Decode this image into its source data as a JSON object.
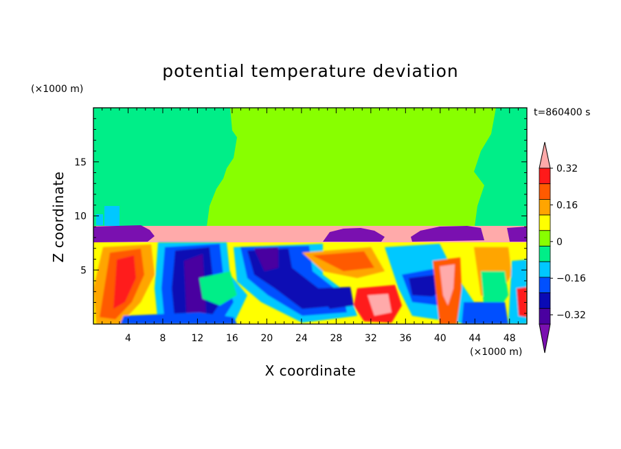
{
  "chart_data": {
    "type": "heatmap",
    "title": "potential temperature deviation",
    "xlabel": "X coordinate",
    "ylabel": "Z coordinate",
    "x_unit": "(×1000 m)",
    "y_unit": "(×1000 m)",
    "time_label": "t=860400 s",
    "xlim": [
      0,
      50
    ],
    "ylim": [
      0,
      20
    ],
    "x_ticks": [
      4,
      8,
      12,
      16,
      20,
      24,
      28,
      32,
      36,
      40,
      44,
      48
    ],
    "y_ticks": [
      5,
      10,
      15
    ],
    "colorbar": {
      "levels": [
        -0.4,
        -0.36,
        -0.32,
        -0.24,
        -0.16,
        -0.08,
        0,
        0.08,
        0.16,
        0.24,
        0.32,
        0.4
      ],
      "tick_labels": [
        "0.32",
        "0.16",
        "0",
        "−0.16",
        "−0.32"
      ],
      "tick_values": [
        0.32,
        0.16,
        0,
        -0.16,
        -0.32
      ],
      "colors": [
        "#7a10b0",
        "#4a00a0",
        "#0a0ab4",
        "#0050ff",
        "#00c8ff",
        "#00ee88",
        "#88ff00",
        "#ffff00",
        "#ffa500",
        "#ff5a00",
        "#ff1a1a",
        "#ffaaaa"
      ],
      "extend": "both"
    },
    "regions": [
      {
        "desc": "upper layer",
        "z_range": [
          9.2,
          20
        ],
        "dominant_value": 0.04,
        "color": "#88ff00"
      },
      {
        "desc": "upper layer edges",
        "z_range": [
          9.2,
          20
        ],
        "dominant_value": -0.04,
        "color": "#00ee88"
      },
      {
        "desc": "inversion band",
        "z_range": [
          7.8,
          9.0
        ],
        "values": [
          0.4,
          -0.4
        ]
      },
      {
        "desc": "turbulent boundary layer",
        "z_range": [
          0,
          7.8
        ],
        "value_range": [
          -0.4,
          0.4
        ]
      }
    ]
  }
}
